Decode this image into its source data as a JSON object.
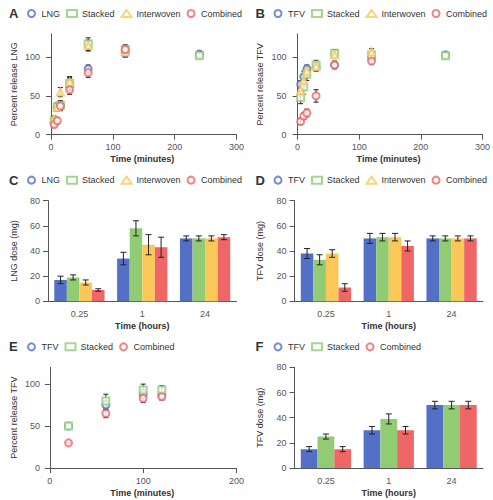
{
  "chart_data": [
    {
      "type": "scatter",
      "title": "A",
      "xlabel": "Time (minutes)",
      "ylabel": "Percent release LNG",
      "xlim": [
        -5,
        300
      ],
      "ylim": [
        0,
        130
      ],
      "xticks": [
        0,
        100,
        200,
        300
      ],
      "yticks": [
        0,
        50,
        100
      ],
      "grid": false,
      "legend": "top",
      "series": [
        {
          "name": "LNG",
          "color": "#5470c6",
          "marker": "circle",
          "x": [
            5,
            10,
            15,
            30,
            60,
            120,
            240
          ],
          "values": [
            17,
            35,
            37,
            65,
            85,
            105,
            104
          ],
          "yerr": [
            3,
            5,
            6,
            8,
            5,
            5,
            4
          ]
        },
        {
          "name": "Stacked",
          "color": "#91cc75",
          "marker": "square",
          "x": [
            5,
            10,
            15,
            30,
            60,
            120,
            240
          ],
          "values": [
            18,
            36,
            38,
            66,
            117,
            110,
            102
          ],
          "yerr": [
            4,
            5,
            6,
            8,
            8,
            4,
            3
          ]
        },
        {
          "name": "Interwoven",
          "color": "#fac858",
          "marker": "triangle",
          "x": [
            5,
            10,
            15,
            30,
            60,
            120
          ],
          "values": [
            20,
            35,
            55,
            68,
            115,
            107
          ],
          "yerr": [
            4,
            5,
            6,
            7,
            7,
            5
          ]
        },
        {
          "name": "Combined",
          "color": "#ee6666",
          "marker": "circle",
          "x": [
            5,
            10,
            15,
            30,
            60,
            120
          ],
          "values": [
            13,
            18,
            37,
            58,
            80,
            110
          ],
          "yerr": [
            3,
            4,
            5,
            6,
            6,
            6
          ]
        }
      ]
    },
    {
      "type": "scatter",
      "title": "B",
      "xlabel": "Time (minutes)",
      "ylabel": "Percent release TFV",
      "xlim": [
        -5,
        300
      ],
      "ylim": [
        0,
        130
      ],
      "xticks": [
        0,
        100,
        200,
        300
      ],
      "yticks": [
        0,
        50,
        100
      ],
      "grid": false,
      "legend": "top",
      "series": [
        {
          "name": "TFV",
          "color": "#5470c6",
          "marker": "circle",
          "x": [
            5,
            10,
            15,
            30,
            60,
            120,
            240
          ],
          "values": [
            65,
            75,
            85,
            87,
            90,
            100,
            103
          ],
          "yerr": [
            5,
            7,
            5,
            5,
            4,
            3,
            3
          ]
        },
        {
          "name": "Stacked",
          "color": "#91cc75",
          "marker": "square",
          "x": [
            5,
            10,
            15,
            30,
            60,
            120,
            240
          ],
          "values": [
            48,
            62,
            78,
            90,
            105,
            103,
            102
          ],
          "yerr": [
            8,
            10,
            8,
            6,
            5,
            3,
            3
          ]
        },
        {
          "name": "Interwoven",
          "color": "#fac858",
          "marker": "triangle",
          "x": [
            5,
            10,
            15,
            30,
            60,
            120
          ],
          "values": [
            57,
            70,
            82,
            88,
            103,
            107
          ],
          "yerr": [
            7,
            8,
            6,
            5,
            4,
            4
          ]
        },
        {
          "name": "Combined",
          "color": "#ee6666",
          "marker": "circle",
          "x": [
            5,
            10,
            15,
            30,
            60,
            120
          ],
          "values": [
            17,
            24,
            28,
            50,
            90,
            95
          ],
          "yerr": [
            4,
            4,
            5,
            8,
            5,
            4
          ]
        }
      ]
    },
    {
      "type": "bar",
      "title": "C",
      "xlabel": "Time (hours)",
      "ylabel": "LNG dose (mg)",
      "categories": [
        "0.25",
        "1",
        "24"
      ],
      "ylim": [
        0,
        80
      ],
      "yticks": [
        0,
        20,
        40,
        60,
        80
      ],
      "grid": false,
      "legend": "top",
      "series": [
        {
          "name": "LNG",
          "color": "#5470c6",
          "values": [
            17,
            34,
            50
          ],
          "yerr": [
            3,
            5,
            2
          ]
        },
        {
          "name": "Stacked",
          "color": "#91cc75",
          "values": [
            19,
            58,
            50
          ],
          "yerr": [
            2,
            6,
            2
          ]
        },
        {
          "name": "Interwoven",
          "color": "#fac858",
          "values": [
            15,
            45,
            50
          ],
          "yerr": [
            2,
            8,
            2
          ]
        },
        {
          "name": "Combined",
          "color": "#ee6666",
          "values": [
            9,
            43,
            51
          ],
          "yerr": [
            1,
            8,
            2
          ]
        }
      ]
    },
    {
      "type": "bar",
      "title": "D",
      "xlabel": "Time (hours)",
      "ylabel": "TFV dose (mg)",
      "categories": [
        "0.25",
        "1",
        "24"
      ],
      "ylim": [
        0,
        80
      ],
      "yticks": [
        0,
        20,
        40,
        60,
        80
      ],
      "grid": false,
      "legend": "top",
      "series": [
        {
          "name": "TFV",
          "color": "#5470c6",
          "values": [
            38,
            50,
            50
          ],
          "yerr": [
            4,
            4,
            2
          ]
        },
        {
          "name": "Stacked",
          "color": "#91cc75",
          "values": [
            33,
            51,
            50
          ],
          "yerr": [
            4,
            3,
            2
          ]
        },
        {
          "name": "Interwoven",
          "color": "#fac858",
          "values": [
            38,
            51,
            50
          ],
          "yerr": [
            3,
            3,
            2
          ]
        },
        {
          "name": "Combined",
          "color": "#ee6666",
          "values": [
            11,
            44,
            50
          ],
          "yerr": [
            3,
            4,
            2
          ]
        }
      ]
    },
    {
      "type": "scatter",
      "title": "E",
      "xlabel": "Time (minutes)",
      "ylabel": "Percent release TFV",
      "xlim": [
        -2,
        200
      ],
      "ylim": [
        0,
        120
      ],
      "xticks": [
        0,
        100,
        200
      ],
      "yticks": [
        0,
        50,
        100
      ],
      "grid": false,
      "legend": "top",
      "series": [
        {
          "name": "TFV",
          "color": "#5470c6",
          "marker": "circle",
          "x": [
            20,
            60,
            100,
            120
          ],
          "values": [
            50,
            75,
            88,
            87
          ],
          "yerr": [
            0,
            5,
            5,
            4
          ]
        },
        {
          "name": "Stacked",
          "color": "#91cc75",
          "marker": "square",
          "x": [
            20,
            60,
            100,
            120
          ],
          "values": [
            50,
            80,
            93,
            93
          ],
          "yerr": [
            0,
            8,
            7,
            5
          ]
        },
        {
          "name": "Combined",
          "color": "#ee6666",
          "marker": "circle",
          "x": [
            20,
            60,
            100,
            120
          ],
          "values": [
            30,
            65,
            83,
            85
          ],
          "yerr": [
            0,
            5,
            5,
            4
          ]
        }
      ]
    },
    {
      "type": "bar",
      "title": "F",
      "xlabel": "Time (hours)",
      "ylabel": "TFV dose (mg)",
      "categories": [
        "0.25",
        "1",
        "24"
      ],
      "ylim": [
        0,
        80
      ],
      "yticks": [
        0,
        20,
        40,
        60,
        80
      ],
      "grid": false,
      "legend": "top",
      "series": [
        {
          "name": "TFV",
          "color": "#5470c6",
          "values": [
            15,
            30,
            50
          ],
          "yerr": [
            2,
            3,
            3
          ]
        },
        {
          "name": "Stacked",
          "color": "#91cc75",
          "values": [
            25,
            39,
            50
          ],
          "yerr": [
            2,
            4,
            3
          ]
        },
        {
          "name": "Combined",
          "color": "#ee6666",
          "values": [
            15,
            30,
            50
          ],
          "yerr": [
            2,
            3,
            3
          ]
        }
      ]
    }
  ]
}
